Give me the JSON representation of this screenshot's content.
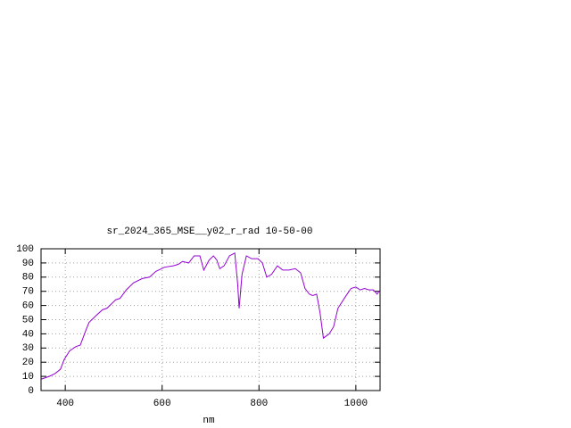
{
  "chart_data": {
    "type": "line",
    "title": "sr_2024_365_MSE__y02_r_rad 10-50-00",
    "x_label": "nm",
    "x": [
      350,
      367,
      379,
      390,
      398,
      409,
      422,
      431,
      442,
      449,
      464,
      477,
      486,
      504,
      513,
      526,
      541,
      559,
      574,
      587,
      605,
      623,
      633,
      642,
      655,
      666,
      678,
      686,
      697,
      706,
      713,
      719,
      728,
      739,
      750,
      756,
      759,
      765,
      774,
      785,
      798,
      807,
      816,
      826,
      838,
      849,
      862,
      875,
      886,
      895,
      904,
      911,
      919,
      926,
      933,
      945,
      954,
      963,
      978,
      990,
      1000,
      1009,
      1018,
      1027,
      1036,
      1044,
      1048
    ],
    "series": [
      {
        "color": "#9400d3",
        "values": [
          8,
          10,
          12,
          15,
          22,
          28,
          31,
          32,
          42,
          48,
          53,
          57,
          58,
          64,
          65,
          71,
          76,
          79,
          80,
          84,
          87,
          88,
          89,
          91,
          90,
          95,
          95,
          85,
          92,
          95,
          92,
          86,
          88,
          95,
          97,
          75,
          58,
          82,
          95,
          93,
          93,
          90,
          80,
          82,
          88,
          85,
          85,
          86,
          83,
          72,
          68,
          67,
          68,
          55,
          37,
          40,
          45,
          58,
          66,
          72,
          73,
          71,
          72,
          71,
          71,
          68,
          70
        ]
      }
    ],
    "xlim": [
      350,
      1050
    ],
    "xticks": [
      400,
      600,
      800,
      1000
    ],
    "ylim": [
      0,
      100
    ],
    "yticks": [
      0,
      10,
      20,
      30,
      40,
      50,
      60,
      70,
      80,
      90,
      100
    ],
    "grid": true
  }
}
